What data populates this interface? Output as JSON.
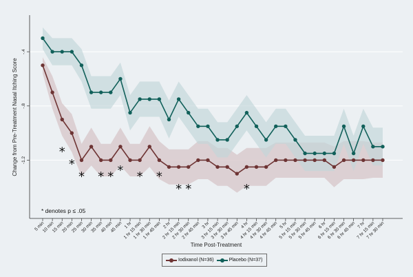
{
  "chart_data": {
    "type": "line",
    "xlabel": "Time Post-Treatment",
    "ylabel": "Change from Pre-Treatment Nasal Itching Score",
    "categories": [
      "5 min",
      "10 min",
      "15 min",
      "20 min",
      "25 min",
      "30 min",
      "35 min",
      "40 min",
      "45 min",
      "1 hr",
      "1 hr 15 min",
      "1 hr 30 min",
      "1 hr 45 min",
      "2 hr",
      "2 hr 15 min",
      "2 hr 30 min",
      "2 hr 45 min",
      "3 hr",
      "3 hr 15 min",
      "3 hr 30 min",
      "3 hr 45 min",
      "4 hr",
      "4 hr 15 min",
      "4 hr 30 min",
      "4 hr 45 min",
      "5 hr",
      "5 hr 15 min",
      "5 hr 30 min",
      "5 hr 45 min",
      "6 hr",
      "6 hr 15 min",
      "6 hr 30 min",
      "6 hr 45 min",
      "7 hr",
      "7 hr 15 min",
      "7 hr 30 min"
    ],
    "yticks": [
      "-.4",
      "-.8",
      "-1.2"
    ],
    "ylim": [
      -1.63,
      -0.13
    ],
    "series": [
      {
        "name": "Iodixanol (N=36)",
        "color": "#6e3434",
        "band_color": "#d8c8cb",
        "values": [
          -0.5,
          -0.7,
          -0.9,
          -1.0,
          -1.2,
          -1.1,
          -1.2,
          -1.2,
          -1.1,
          -1.2,
          -1.2,
          -1.1,
          -1.2,
          -1.25,
          -1.25,
          -1.25,
          -1.2,
          -1.2,
          -1.25,
          -1.25,
          -1.3,
          -1.25,
          -1.25,
          -1.25,
          -1.2,
          -1.2,
          -1.2,
          -1.2,
          -1.2,
          -1.2,
          -1.25,
          -1.2,
          -1.2,
          -1.2,
          -1.2,
          -1.2
        ],
        "ci_low": [
          -0.56,
          -0.82,
          -1.02,
          -1.14,
          -1.32,
          -1.24,
          -1.32,
          -1.32,
          -1.24,
          -1.32,
          -1.32,
          -1.25,
          -1.34,
          -1.38,
          -1.38,
          -1.38,
          -1.34,
          -1.34,
          -1.39,
          -1.39,
          -1.44,
          -1.39,
          -1.39,
          -1.39,
          -1.33,
          -1.33,
          -1.33,
          -1.33,
          -1.33,
          -1.33,
          -1.4,
          -1.34,
          -1.34,
          -1.34,
          -1.33,
          -1.33
        ],
        "ci_high": [
          -0.44,
          -0.58,
          -0.78,
          -0.86,
          -1.08,
          -0.96,
          -1.08,
          -1.08,
          -0.96,
          -1.08,
          -1.08,
          -0.95,
          -1.06,
          -1.12,
          -1.12,
          -1.12,
          -1.06,
          -1.06,
          -1.11,
          -1.11,
          -1.16,
          -1.11,
          -1.11,
          -1.11,
          -1.07,
          -1.07,
          -1.07,
          -1.07,
          -1.07,
          -1.07,
          -1.1,
          -1.06,
          -1.06,
          -1.06,
          -1.07,
          -1.07
        ]
      },
      {
        "name": "Placebo (N=37)",
        "color": "#11605a",
        "band_color": "#c2d6d8",
        "values": [
          -0.3,
          -0.4,
          -0.4,
          -0.4,
          -0.5,
          -0.7,
          -0.7,
          -0.7,
          -0.6,
          -0.85,
          -0.75,
          -0.75,
          -0.75,
          -0.9,
          -0.75,
          -0.85,
          -0.95,
          -0.95,
          -1.05,
          -1.05,
          -0.95,
          -0.85,
          -0.95,
          -1.05,
          -0.95,
          -0.95,
          -1.05,
          -1.15,
          -1.15,
          -1.15,
          -1.15,
          -0.95,
          -1.15,
          -0.95,
          -1.1,
          -1.1
        ],
        "ci_low": [
          -0.38,
          -0.5,
          -0.5,
          -0.5,
          -0.62,
          -0.82,
          -0.82,
          -0.82,
          -0.72,
          -0.98,
          -0.88,
          -0.88,
          -0.88,
          -1.04,
          -0.88,
          -0.98,
          -1.08,
          -1.08,
          -1.18,
          -1.18,
          -1.08,
          -0.98,
          -1.08,
          -1.18,
          -1.08,
          -1.08,
          -1.18,
          -1.28,
          -1.28,
          -1.28,
          -1.28,
          -1.08,
          -1.28,
          -1.08,
          -1.24,
          -1.24
        ],
        "ci_high": [
          -0.22,
          -0.3,
          -0.3,
          -0.3,
          -0.38,
          -0.58,
          -0.58,
          -0.58,
          -0.48,
          -0.72,
          -0.62,
          -0.62,
          -0.62,
          -0.76,
          -0.62,
          -0.72,
          -0.82,
          -0.82,
          -0.92,
          -0.92,
          -0.82,
          -0.72,
          -0.82,
          -0.92,
          -0.82,
          -0.82,
          -0.92,
          -1.02,
          -1.02,
          -1.02,
          -1.02,
          -0.82,
          -1.02,
          -0.82,
          -0.96,
          -0.96
        ]
      }
    ],
    "significance_marks": [
      {
        "label": "*",
        "index": 2,
        "level": 1
      },
      {
        "label": "*",
        "index": 3,
        "level": 2
      },
      {
        "label": "*",
        "index": 4,
        "level": 3
      },
      {
        "label": "*",
        "index": 6,
        "level": 3
      },
      {
        "label": "*",
        "index": 7,
        "level": 3
      },
      {
        "label": "*",
        "index": 8,
        "level": 2.5
      },
      {
        "label": "*",
        "index": 10,
        "level": 3
      },
      {
        "label": "*",
        "index": 12,
        "level": 3
      },
      {
        "label": "*",
        "index": 14,
        "level": 4
      },
      {
        "label": "*",
        "index": 15,
        "level": 4
      },
      {
        "label": "*",
        "index": 21,
        "level": 4
      }
    ],
    "annotation": "* denotes p ≤ .05",
    "legend_position": "bottom",
    "grid": true
  }
}
